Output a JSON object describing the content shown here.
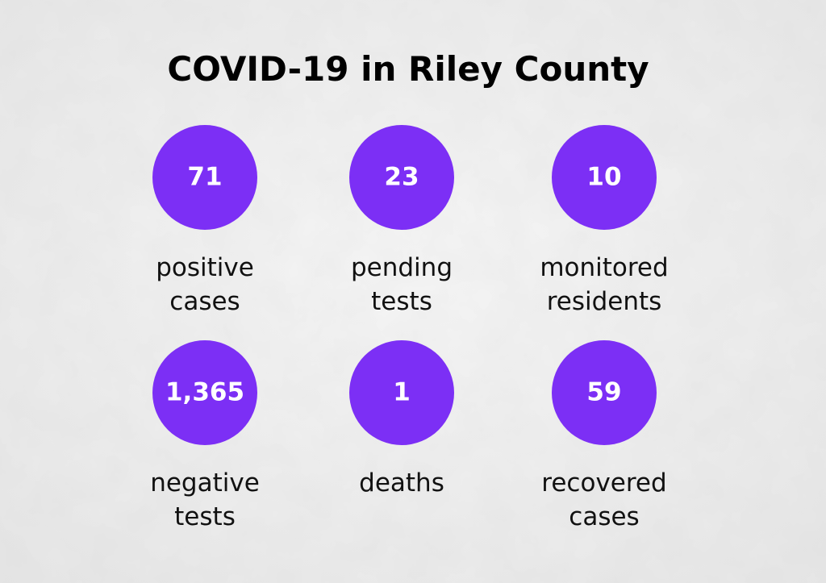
{
  "title": "COVID-19 in Riley County",
  "stats": [
    {
      "value": "71",
      "label": [
        "positive",
        "cases"
      ]
    },
    {
      "value": "23",
      "label": [
        "pending",
        "tests"
      ]
    },
    {
      "value": "10",
      "label": [
        "monitored",
        "residents"
      ]
    },
    {
      "value": "1,365",
      "label": [
        "negative",
        "tests"
      ]
    },
    {
      "value": "1",
      "label": [
        "deaths"
      ]
    },
    {
      "value": "59",
      "label": [
        "recovered",
        "cases"
      ]
    }
  ]
}
